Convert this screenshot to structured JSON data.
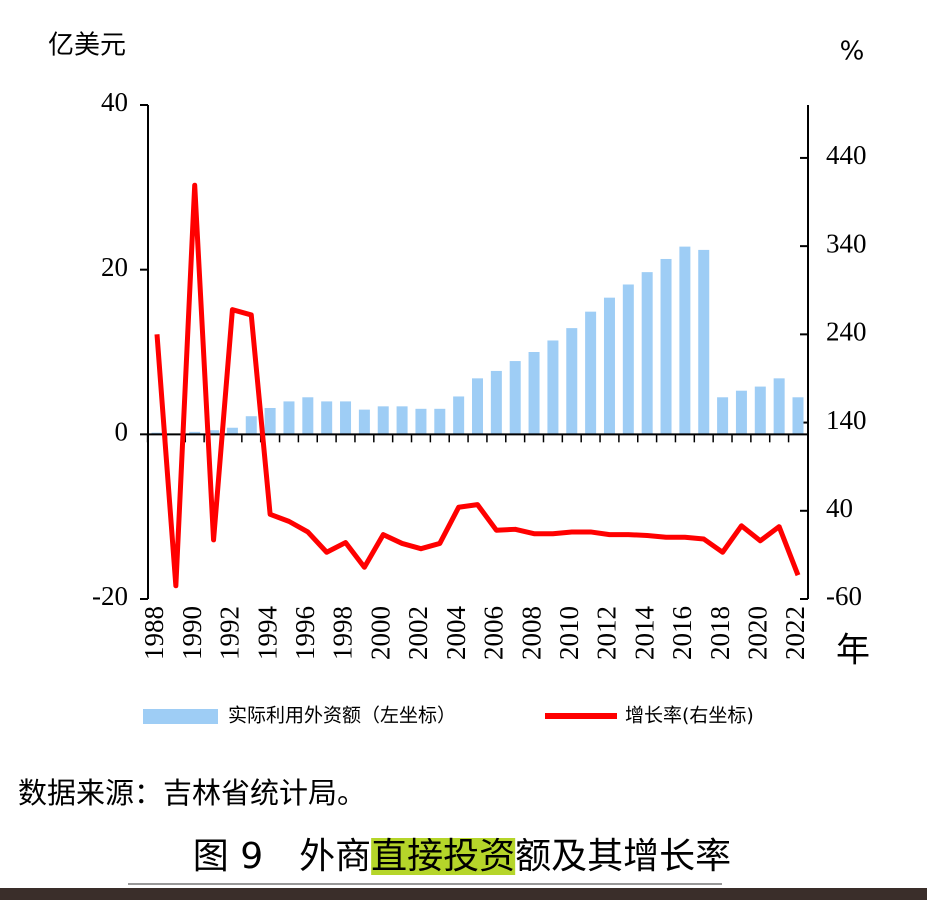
{
  "chart_data": {
    "type": "combo",
    "y_label": "亿美元",
    "y2_label": "%",
    "x_label": "年",
    "categories": [
      "1988",
      null,
      "1990",
      null,
      "1992",
      null,
      "1994",
      null,
      "1996",
      null,
      "1998",
      null,
      "2000",
      null,
      "2002",
      null,
      "2004",
      null,
      "2006",
      null,
      "2008",
      null,
      "2010",
      null,
      "2012",
      null,
      "2014",
      null,
      "2016",
      null,
      "2018",
      null,
      "2020",
      null,
      "2022"
    ],
    "series": [
      {
        "name": "实际利用外资额（左坐标）",
        "type": "bar",
        "color": "#9ecdf5",
        "values": [
          0.2,
          0.1,
          0.3,
          0.5,
          0.8,
          2.2,
          3.2,
          4.0,
          4.5,
          4.0,
          4.0,
          3.0,
          3.4,
          3.4,
          3.1,
          3.1,
          4.6,
          6.8,
          7.7,
          8.9,
          10.0,
          11.4,
          12.9,
          14.9,
          16.6,
          18.2,
          19.7,
          21.3,
          22.8,
          22.4,
          4.5,
          5.3,
          5.8,
          6.8,
          4.5
        ]
      },
      {
        "name": "增长率(右坐标)",
        "type": "line",
        "axis": "y2",
        "color": "#ff0000",
        "values": [
          240,
          -45,
          409,
          7,
          268,
          262,
          36,
          28,
          16,
          -7,
          4,
          -24,
          13,
          3,
          -3,
          3,
          44,
          47,
          18,
          19,
          14,
          14,
          16,
          16,
          13,
          13,
          12,
          10,
          10,
          8,
          -7,
          23,
          6,
          22,
          -33
        ]
      }
    ],
    "ylim": [
      -20,
      40
    ],
    "yticks": [
      -20,
      0,
      20,
      40
    ],
    "y2lim": [
      -60,
      500
    ],
    "y2ticks": [
      -60,
      40,
      140,
      240,
      340,
      440
    ]
  },
  "source": "数据来源：吉林省统计局。",
  "caption": [
    "图 9　外商",
    "直接投资",
    "额及其增长率"
  ]
}
